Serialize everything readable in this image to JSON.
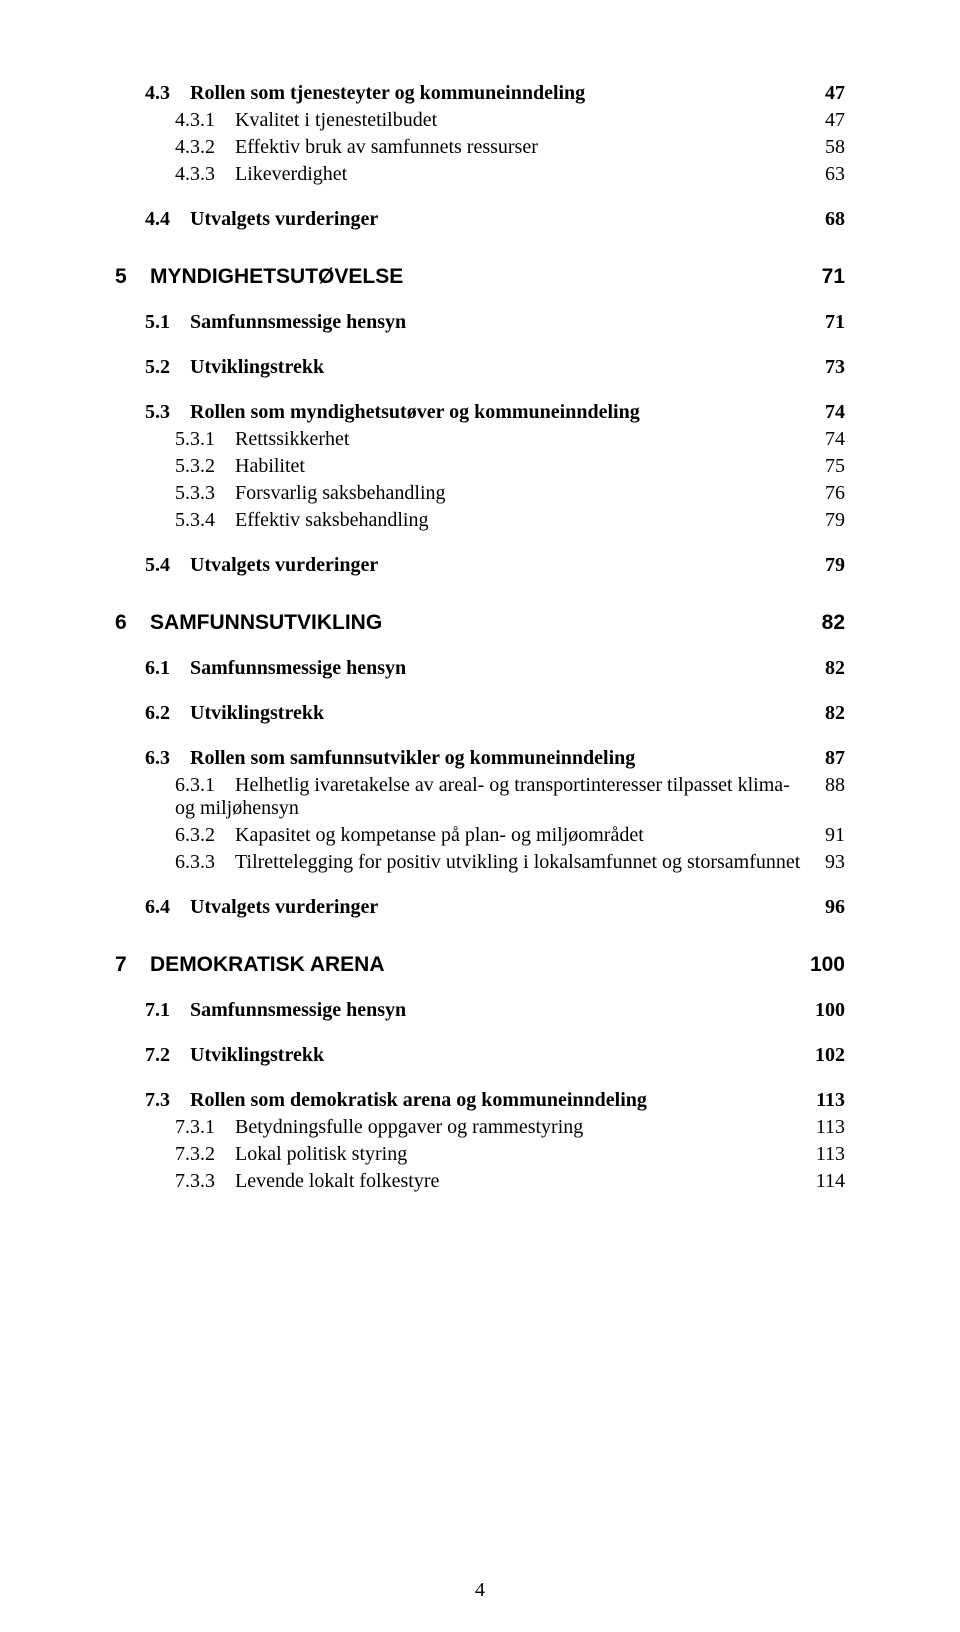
{
  "page_number": "4",
  "entries": [
    {
      "level": 2,
      "num": "4.3",
      "title": "Rollen som tjenesteyter og kommuneinndeling",
      "page": "47"
    },
    {
      "level": 3,
      "num": "4.3.1",
      "title": "Kvalitet i tjenestetilbudet",
      "page": "47"
    },
    {
      "level": 3,
      "num": "4.3.2",
      "title": "Effektiv bruk av samfunnets ressurser",
      "page": "58"
    },
    {
      "level": 3,
      "num": "4.3.3",
      "title": "Likeverdighet",
      "page": "63"
    },
    {
      "level": 2,
      "num": "4.4",
      "title": "Utvalgets vurderinger",
      "page": "68"
    },
    {
      "level": 1,
      "num": "5",
      "title": "MYNDIGHETSUTØVELSE",
      "page": "71"
    },
    {
      "level": 2,
      "num": "5.1",
      "title": "Samfunnsmessige hensyn",
      "page": "71"
    },
    {
      "level": 2,
      "num": "5.2",
      "title": "Utviklingstrekk",
      "page": "73"
    },
    {
      "level": 2,
      "num": "5.3",
      "title": "Rollen som myndighetsutøver og kommuneinndeling",
      "page": "74"
    },
    {
      "level": 3,
      "num": "5.3.1",
      "title": "Rettssikkerhet",
      "page": "74"
    },
    {
      "level": 3,
      "num": "5.3.2",
      "title": "Habilitet",
      "page": "75"
    },
    {
      "level": 3,
      "num": "5.3.3",
      "title": "Forsvarlig saksbehandling",
      "page": "76"
    },
    {
      "level": 3,
      "num": "5.3.4",
      "title": "Effektiv saksbehandling",
      "page": "79"
    },
    {
      "level": 2,
      "num": "5.4",
      "title": "Utvalgets vurderinger",
      "page": "79"
    },
    {
      "level": 1,
      "num": "6",
      "title": "SAMFUNNSUTVIKLING",
      "page": "82"
    },
    {
      "level": 2,
      "num": "6.1",
      "title": "Samfunnsmessige hensyn",
      "page": "82"
    },
    {
      "level": 2,
      "num": "6.2",
      "title": "Utviklingstrekk",
      "page": "82"
    },
    {
      "level": 2,
      "num": "6.3",
      "title": "Rollen som samfunnsutvikler og kommuneinndeling",
      "page": "87"
    },
    {
      "level": 3,
      "num": "6.3.1",
      "title": "Helhetlig ivaretakelse av areal- og transportinteresser tilpasset klima- og miljøhensyn",
      "page": "88"
    },
    {
      "level": 3,
      "num": "6.3.2",
      "title": "Kapasitet og kompetanse på plan- og miljøområdet",
      "page": "91"
    },
    {
      "level": 3,
      "num": "6.3.3",
      "title": "Tilrettelegging for positiv utvikling i lokalsamfunnet og storsamfunnet",
      "page": "93"
    },
    {
      "level": 2,
      "num": "6.4",
      "title": "Utvalgets vurderinger",
      "page": "96"
    },
    {
      "level": 1,
      "num": "7",
      "title": "DEMOKRATISK ARENA",
      "page": "100"
    },
    {
      "level": 2,
      "num": "7.1",
      "title": "Samfunnsmessige hensyn",
      "page": "100"
    },
    {
      "level": 2,
      "num": "7.2",
      "title": "Utviklingstrekk",
      "page": "102"
    },
    {
      "level": 2,
      "num": "7.3",
      "title": "Rollen som demokratisk arena og kommuneinndeling",
      "page": "113"
    },
    {
      "level": 3,
      "num": "7.3.1",
      "title": "Betydningsfulle oppgaver og rammestyring",
      "page": "113"
    },
    {
      "level": 3,
      "num": "7.3.2",
      "title": "Lokal politisk styring",
      "page": "113"
    },
    {
      "level": 3,
      "num": "7.3.3",
      "title": "Levende lokalt folkestyre",
      "page": "114"
    }
  ]
}
